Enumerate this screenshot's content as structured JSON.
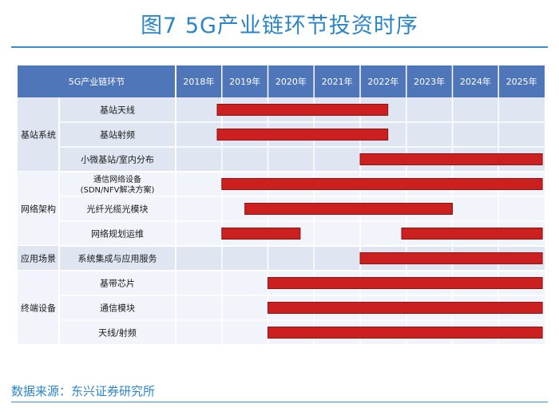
{
  "figure": {
    "title": "图7  5G产业链环节投资时序",
    "source": "数据来源：东兴证券研究所"
  },
  "chart_data": {
    "type": "gantt",
    "header_label": "5G产业链环节",
    "years": [
      "2018年",
      "2019年",
      "2020年",
      "2021年",
      "2022年",
      "2023年",
      "2024年",
      "2025年"
    ],
    "groups": [
      {
        "name": "基站系统",
        "rows": [
          {
            "label": "基站天线",
            "bars": [
              [
                2018.9,
                2022.6
              ]
            ]
          },
          {
            "label": "基站射频",
            "bars": [
              [
                2018.9,
                2022.6
              ]
            ]
          },
          {
            "label": "小微基站/室内分布",
            "bars": [
              [
                2022.0,
                2025.95
              ]
            ]
          }
        ]
      },
      {
        "name": "网络架构",
        "rows": [
          {
            "label": "通信网络设备\n(SDN/NFV解决方案)",
            "bars": [
              [
                2019.0,
                2025.95
              ]
            ]
          },
          {
            "label": "光纤光缆光模块",
            "bars": [
              [
                2019.5,
                2024.0
              ]
            ]
          },
          {
            "label": "网络规划运维",
            "bars": [
              [
                2019.0,
                2020.7
              ],
              [
                2022.9,
                2025.95
              ]
            ]
          }
        ]
      },
      {
        "name": "应用场景",
        "rows": [
          {
            "label": "系统集成与应用服务",
            "bars": [
              [
                2022.0,
                2025.95
              ]
            ]
          }
        ]
      },
      {
        "name": "终端设备",
        "rows": [
          {
            "label": "基带芯片",
            "bars": [
              [
                2020.0,
                2025.95
              ]
            ]
          },
          {
            "label": "通信模块",
            "bars": [
              [
                2020.0,
                2025.95
              ]
            ]
          },
          {
            "label": "天线/射频",
            "bars": [
              [
                2020.0,
                2025.95
              ]
            ]
          }
        ]
      }
    ],
    "x_range": [
      2018,
      2026
    ],
    "bar_color": "#cc1f1f",
    "header_color": "#4f76b9",
    "grid": true
  }
}
